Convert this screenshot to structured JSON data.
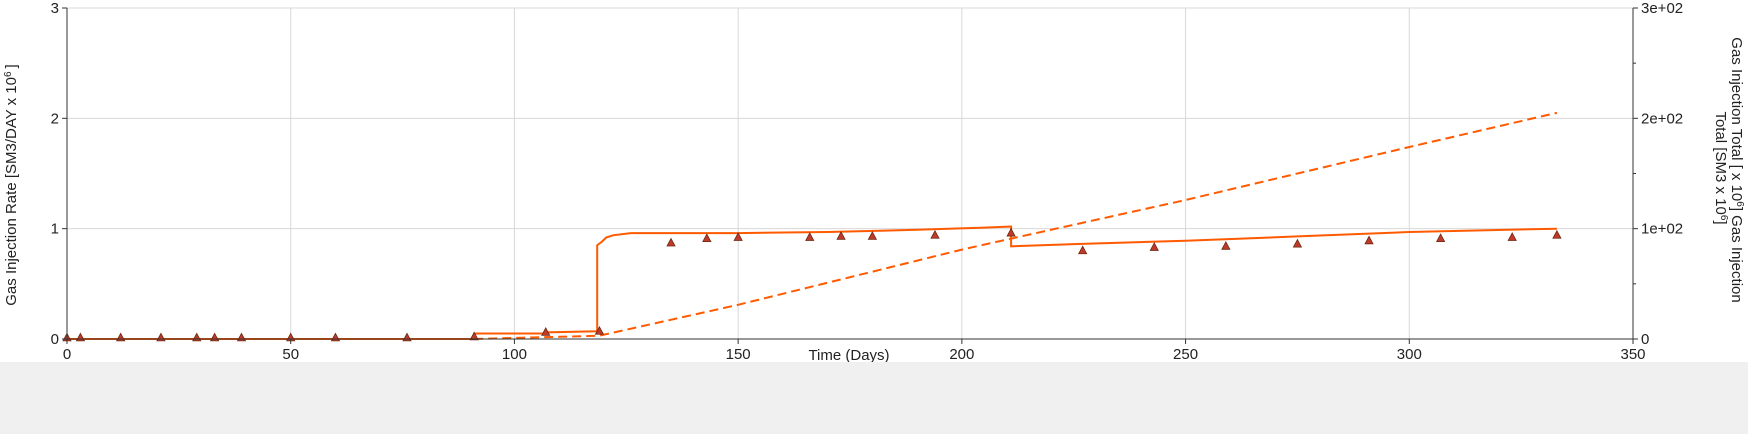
{
  "chart_data": {
    "type": "line",
    "xlabel": "Time (Days)",
    "ylabel_left": "Gas Injection Rate [SM3/DAY x 10",
    "ylabel_left_exp": "6",
    "ylabel_left_end": "]",
    "ylabel_right_line1": "Gas Injection Total [ x 10",
    "ylabel_right_line1_exp": "6",
    "ylabel_right_line1_end": "] Gas Injection",
    "ylabel_right_line2": "Total [SM3 x 10",
    "ylabel_right_line2_exp": "6",
    "ylabel_right_line2_end": "]",
    "xlim": [
      0,
      350
    ],
    "ylim_left": [
      0,
      3
    ],
    "ylim_right": [
      0,
      300
    ],
    "x_ticks": [
      0,
      50,
      100,
      150,
      200,
      250,
      300,
      350
    ],
    "x_tick_labels": [
      "0",
      "50",
      "100",
      "150",
      "200",
      "250",
      "300",
      "350"
    ],
    "y_left_ticks": [
      0,
      1,
      2,
      3
    ],
    "y_left_tick_labels": [
      "0",
      "1",
      "2",
      "3"
    ],
    "y_right_ticks": [
      0,
      100,
      200,
      300
    ],
    "y_right_tick_labels": [
      "0",
      "1e+02",
      "2e+02",
      "3e+02"
    ],
    "grid": true,
    "colors": {
      "line": "#ff5a00",
      "marker_fill": "#c0392b",
      "marker_edge": "#6b2a10",
      "grid": "#d8d8d8",
      "axis": "#333333"
    },
    "series": [
      {
        "style": "solid",
        "axis": "left",
        "points": [
          [
            0,
            0
          ],
          [
            91,
            0
          ],
          [
            91,
            0.05
          ],
          [
            107,
            0.05
          ],
          [
            107,
            0.06
          ],
          [
            118.5,
            0.07
          ],
          [
            118.5,
            0.85
          ],
          [
            119.5,
            0.88
          ],
          [
            120.5,
            0.92
          ],
          [
            122,
            0.94
          ],
          [
            126,
            0.96
          ],
          [
            150,
            0.96
          ],
          [
            170,
            0.97
          ],
          [
            190,
            0.99
          ],
          [
            205,
            1.01
          ],
          [
            211,
            1.02
          ],
          [
            211,
            0.84
          ],
          [
            225,
            0.86
          ],
          [
            250,
            0.89
          ],
          [
            275,
            0.93
          ],
          [
            300,
            0.97
          ],
          [
            333,
            1.0
          ]
        ]
      },
      {
        "style": "dashed",
        "axis": "right",
        "points": [
          [
            91,
            0
          ],
          [
            100,
            1
          ],
          [
            110,
            2
          ],
          [
            119,
            3
          ],
          [
            150,
            31
          ],
          [
            200,
            81
          ],
          [
            211,
            91
          ],
          [
            250,
            126
          ],
          [
            300,
            174
          ],
          [
            333,
            205
          ]
        ]
      },
      {
        "style": "markers",
        "axis": "left",
        "points": [
          [
            0,
            0.01
          ],
          [
            3,
            0.01
          ],
          [
            12,
            0.01
          ],
          [
            21,
            0.01
          ],
          [
            29,
            0.01
          ],
          [
            33,
            0.01
          ],
          [
            39,
            0.01
          ],
          [
            50,
            0.01
          ],
          [
            60,
            0.01
          ],
          [
            76,
            0.01
          ],
          [
            91,
            0.02
          ],
          [
            107,
            0.06
          ],
          [
            119,
            0.07
          ],
          [
            135,
            0.87
          ],
          [
            143,
            0.91
          ],
          [
            150,
            0.92
          ],
          [
            166,
            0.92
          ],
          [
            173,
            0.93
          ],
          [
            180,
            0.93
          ],
          [
            194,
            0.94
          ],
          [
            211,
            0.96
          ],
          [
            227,
            0.8
          ],
          [
            243,
            0.83
          ],
          [
            259,
            0.84
          ],
          [
            275,
            0.86
          ],
          [
            291,
            0.89
          ],
          [
            307,
            0.91
          ],
          [
            323,
            0.92
          ],
          [
            333,
            0.94
          ]
        ]
      }
    ]
  }
}
